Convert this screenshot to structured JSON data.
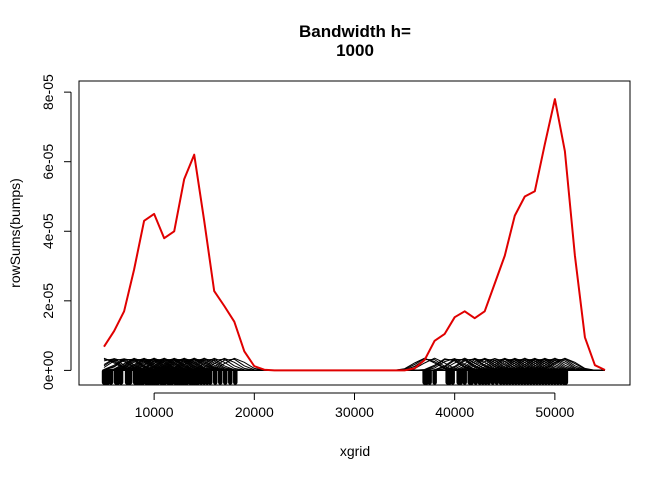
{
  "chart_data": {
    "type": "line",
    "title_line1": "Bandwidth h=",
    "title_line2": "1000",
    "xlabel": "xgrid",
    "ylabel": "rowSums(bumps)",
    "xlim": [
      2500,
      57500
    ],
    "ylim": [
      -4.2e-06,
      8.32e-05
    ],
    "x_ticks": [
      10000,
      20000,
      30000,
      40000,
      50000
    ],
    "x_tick_labels": [
      "10000",
      "20000",
      "30000",
      "40000",
      "50000"
    ],
    "y_ticks": [
      0,
      2e-05,
      4e-05,
      6e-05,
      8e-05
    ],
    "y_tick_labels": [
      "0e+00",
      "2e-05",
      "4e-05",
      "6e-05",
      "8e-05"
    ],
    "bandwidth": 1000,
    "bump_peak": 3.5e-06,
    "series": [
      {
        "color": "#e00000",
        "x": [
          5000,
          6000,
          7000,
          8000,
          9000,
          10000,
          11000,
          12000,
          13000,
          14000,
          15000,
          16000,
          17000,
          18000,
          19000,
          20000,
          21000,
          22000,
          23000,
          24000,
          25000,
          26000,
          27000,
          28000,
          29000,
          30000,
          31000,
          32000,
          33000,
          34000,
          35000,
          36000,
          37000,
          38000,
          39000,
          40000,
          41000,
          42000,
          43000,
          44000,
          45000,
          46000,
          47000,
          48000,
          49000,
          50000,
          51000,
          52000,
          53000,
          54000,
          55000
        ],
        "values": [
          6.8e-06,
          1.13e-05,
          1.7e-05,
          2.9e-05,
          4.3e-05,
          4.5e-05,
          3.8e-05,
          4e-05,
          5.5e-05,
          6.2e-05,
          4.3e-05,
          2.28e-05,
          1.85e-05,
          1.4e-05,
          5.5e-06,
          1.2e-06,
          2e-07,
          0,
          0,
          0,
          0,
          0,
          0,
          0,
          0,
          0,
          0,
          0,
          0,
          0,
          0,
          6e-07,
          3e-06,
          8.5e-06,
          1.05e-05,
          1.53e-05,
          1.7e-05,
          1.5e-05,
          1.7e-05,
          2.5e-05,
          3.3e-05,
          4.45e-05,
          5e-05,
          5.15e-05,
          6.5e-05,
          7.8e-05,
          6.3e-05,
          3.3e-05,
          9.5e-06,
          1.5e-06,
          1e-07
        ]
      }
    ],
    "rug_points": [
      5000,
      5200,
      5400,
      5700,
      6200,
      6400,
      6700,
      7300,
      7500,
      7600,
      8100,
      8300,
      8500,
      8700,
      8900,
      9200,
      9400,
      9600,
      9800,
      10000,
      10200,
      10400,
      10700,
      10900,
      11100,
      11400,
      11600,
      11800,
      12100,
      12300,
      12500,
      12700,
      12900,
      13100,
      13300,
      13600,
      13800,
      14000,
      14200,
      14400,
      14700,
      15000,
      15300,
      15600,
      16100,
      16600,
      17100,
      17600,
      18100,
      37000,
      37200,
      37500,
      38000,
      39300,
      39500,
      39800,
      40400,
      40600,
      41000,
      41500,
      41700,
      42100,
      42500,
      42800,
      43100,
      43400,
      43800,
      44200,
      44600,
      44900,
      45200,
      45500,
      45800,
      46100,
      46400,
      46700,
      47000,
      47300,
      47600,
      47900,
      48200,
      48500,
      48800,
      49100,
      49400,
      49700,
      50000,
      50300,
      50600,
      50900,
      51100
    ]
  }
}
